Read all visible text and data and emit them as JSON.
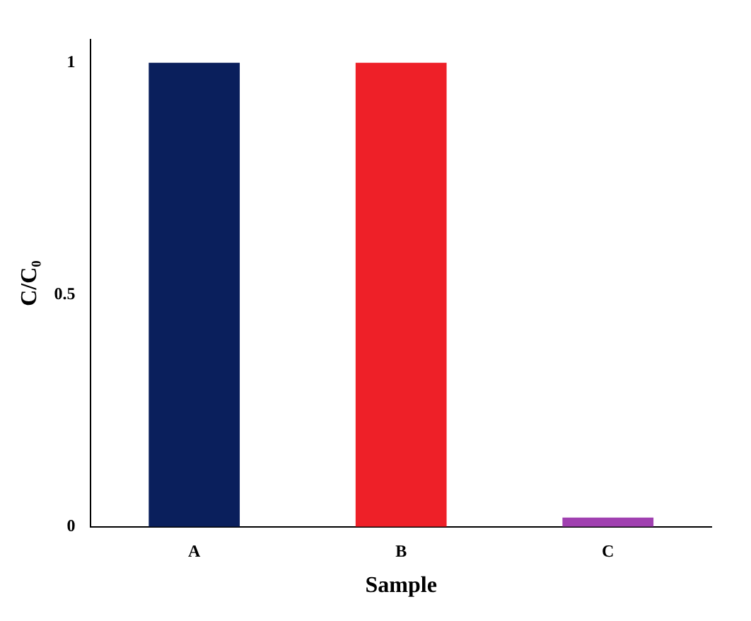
{
  "chart_data": {
    "type": "bar",
    "xlabel": "Sample",
    "ylabel": "C/C₀",
    "categories": [
      "A",
      "B",
      "C"
    ],
    "values": [
      1.0,
      1.0,
      0.02
    ],
    "colors": [
      "#0a1f5c",
      "#ee2028",
      "#a040b0"
    ],
    "ylim": [
      0,
      1.05
    ],
    "yticks": [
      0,
      0.5,
      1
    ],
    "grid": false,
    "legend": false
  }
}
